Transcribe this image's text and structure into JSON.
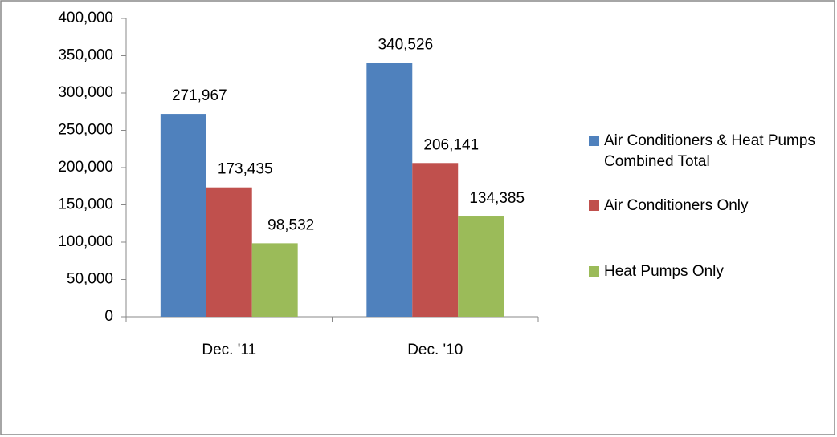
{
  "chart_data": {
    "type": "bar",
    "categories": [
      "Dec. '11",
      "Dec. '10"
    ],
    "series": [
      {
        "name": "Air Conditioners & Heat Pumps Combined Total",
        "color": "#4f81bd",
        "values": [
          271967,
          340526
        ],
        "value_labels": [
          "271,967",
          "340,526"
        ]
      },
      {
        "name": "Air Conditioners Only",
        "color": "#c0504d",
        "values": [
          173435,
          206141
        ],
        "value_labels": [
          "173,435",
          "206,141"
        ]
      },
      {
        "name": "Heat Pumps Only",
        "color": "#9bbb59",
        "values": [
          98532,
          134385
        ],
        "value_labels": [
          "98,532",
          "134,385"
        ]
      }
    ],
    "ylim": [
      0,
      400000
    ],
    "yticks": [
      0,
      {
        "value": 50000,
        "label": "50,000"
      },
      {
        "value": 100000,
        "label": "100,000"
      },
      {
        "value": 150000,
        "label": "150,000"
      },
      {
        "value": 200000,
        "label": "200,000"
      },
      {
        "value": 250000,
        "label": "250,000"
      },
      {
        "value": 300000,
        "label": "300,000"
      },
      {
        "value": 350000,
        "label": "350,000"
      },
      {
        "value": 400000,
        "label": "400,000"
      }
    ],
    "legend": "right"
  }
}
